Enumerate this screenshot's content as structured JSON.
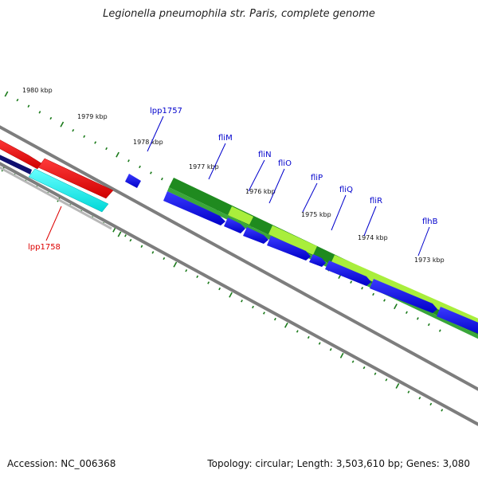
{
  "title": "Legionella pneumophila str. Paris, complete genome",
  "footer": {
    "accession": "Accession: NC_006368",
    "summary": "Topology: circular; Length: 3,503,610 bp; Genes: 3,080"
  },
  "scale": {
    "labels": [
      "1980 kbp",
      "1979 kbp",
      "1978 kbp",
      "1977 kbp",
      "1976 kbp",
      "1975 kbp",
      "1974 kbp",
      "1973 kbp"
    ]
  },
  "genes": {
    "lpp1757": "lpp1757",
    "lpp1758": "lpp1758",
    "fliM": "fliM",
    "fliN": "fliN",
    "fliO": "fliO",
    "fliP": "fliP",
    "fliQ": "fliQ",
    "fliR": "fliR",
    "flhB": "flhB"
  },
  "colors": {
    "forward_cds": "#0000ee",
    "reverse_cds": "#ff0000",
    "operon_dark": "#228b22",
    "operon_light": "#aef03c",
    "reverse_gene": "#00ffff",
    "backbone": "#808080",
    "tick": "#1a7a1a",
    "label_forward": "#0000cc",
    "label_reverse": "#dd0000"
  }
}
